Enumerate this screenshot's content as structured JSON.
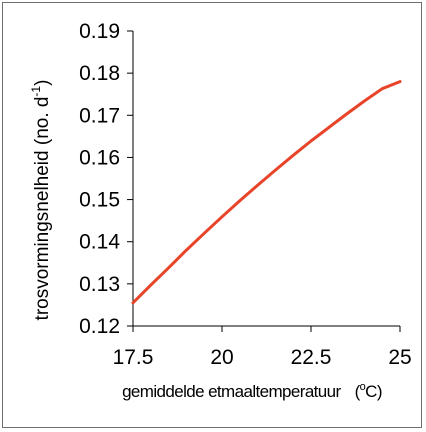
{
  "chart_data": {
    "type": "line",
    "title": "",
    "xlabel": "gemiddelde etmaaltemperatuur",
    "xlabel_unit_prefix": "(",
    "xlabel_unit_sup": "o",
    "xlabel_unit_suffix": "C)",
    "ylabel": "trosvormingsnelheid (no. d",
    "ylabel_sup": "-1",
    "ylabel_suffix": ")",
    "xlim": [
      17.5,
      25
    ],
    "ylim": [
      0.12,
      0.19
    ],
    "x_ticks": [
      "17.5",
      "20",
      "22.5",
      "25"
    ],
    "y_ticks": [
      "0.12",
      "0.13",
      "0.14",
      "0.15",
      "0.16",
      "0.17",
      "0.18",
      "0.19"
    ],
    "grid": false,
    "line_color": "#e8442a",
    "series": [
      {
        "x": [
          17.5,
          18,
          18.5,
          19,
          19.5,
          20,
          20.5,
          21,
          21.5,
          22,
          22.5,
          23,
          23.5,
          24,
          24.5,
          25
        ],
        "values": [
          0.1255,
          0.1297,
          0.1338,
          0.138,
          0.142,
          0.1459,
          0.1497,
          0.1534,
          0.157,
          0.1605,
          0.1639,
          0.1671,
          0.1703,
          0.1734,
          0.1763,
          0.178
        ]
      }
    ]
  }
}
